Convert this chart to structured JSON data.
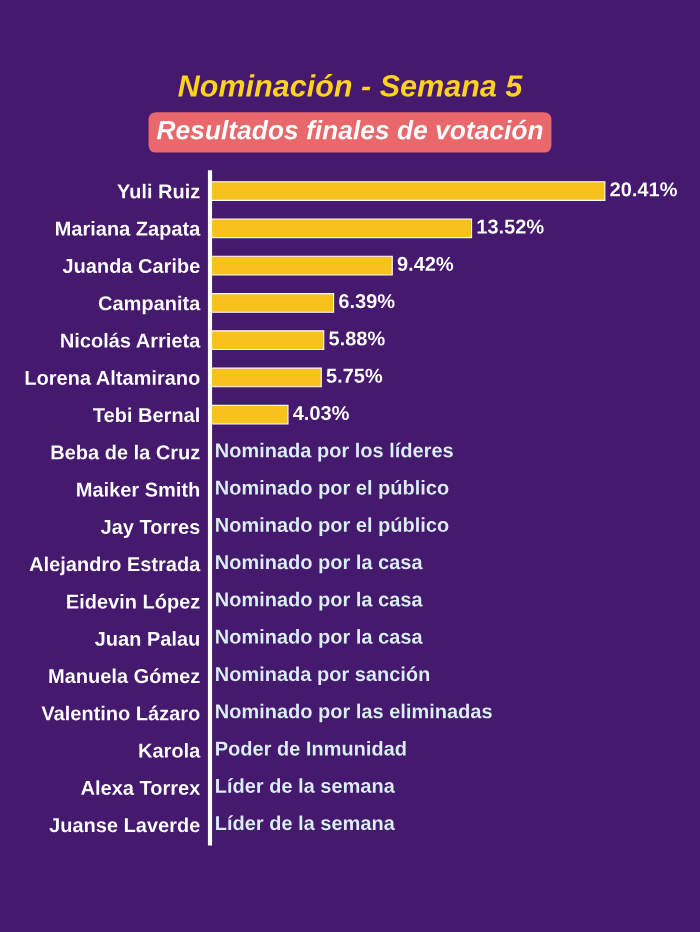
{
  "chart_data": {
    "type": "bar",
    "orientation": "horizontal",
    "title": "Nominación - Semana 5",
    "subtitle": "Resultados finales de votación",
    "categories": [
      "Yuli Ruiz",
      "Mariana Zapata",
      "Juanda Caribe",
      "Campanita",
      "Nicolás Arrieta",
      "Lorena Altamirano",
      "Tebi Bernal",
      "Beba de la Cruz",
      "Maiker Smith",
      "Jay Torres",
      "Alejandro Estrada",
      "Eidevin López",
      "Juan Palau",
      "Manuela Gómez",
      "Valentino Lázaro",
      "Karola",
      "Alexa Torrex",
      "Juanse Laverde"
    ],
    "values": [
      20.41,
      13.52,
      9.42,
      6.39,
      5.88,
      5.75,
      4.03,
      null,
      null,
      null,
      null,
      null,
      null,
      null,
      null,
      null,
      null,
      null
    ],
    "value_labels": [
      "20.41%",
      "13.52%",
      "9.42%",
      "6.39%",
      "5.88%",
      "5.75%",
      "4.03%",
      "Nominada por los líderes",
      "Nominado por el público",
      "Nominado por el público",
      "Nominado por la casa",
      "Nominado por la casa",
      "Nominado por la casa",
      "Nominada por sanción",
      "Nominado por las eliminadas",
      "Poder de Inmunidad",
      "Líder de la semana",
      "Líder de la semana"
    ],
    "color": "#f7c21b",
    "grid": false,
    "legend": false,
    "tick_labels": "y"
  }
}
